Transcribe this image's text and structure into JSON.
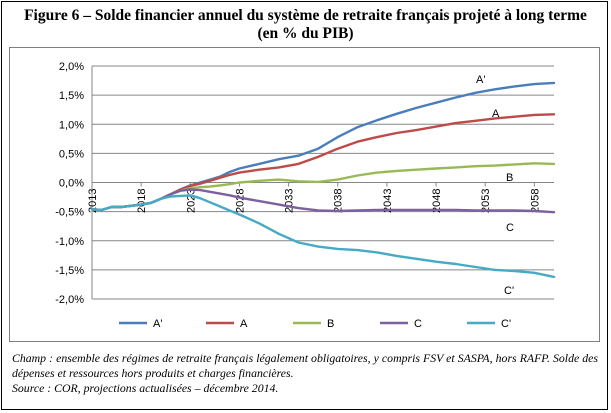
{
  "title_line1": "Figure 6 – Solde financier annuel du système de retraite français projeté à long terme",
  "title_line2": "(en % du PIB)",
  "notes": {
    "champ": "Champ : ensemble des régimes de retraite français légalement obligatoires, y compris FSV et SASPA, hors RAFP. Solde des dépenses et ressources hors produits et charges financières.",
    "source": "Source : COR, projections actualisées – décembre 2014."
  },
  "chart_data": {
    "type": "line",
    "title": "Solde financier annuel du système de retraite français projeté à long terme",
    "ylabel": "en % du PIB",
    "x_range": [
      2013,
      2060
    ],
    "x_ticks": [
      2013,
      2018,
      2023,
      2028,
      2033,
      2038,
      2043,
      2048,
      2053,
      2058
    ],
    "y_ticks": [
      "2,0%",
      "1,5%",
      "1,0%",
      "0,5%",
      "0,0%",
      "-0,5%",
      "-1,0%",
      "-1,5%",
      "-2,0%"
    ],
    "ylim": [
      -2.0,
      2.0
    ],
    "grid": "horizontal",
    "legend_position": "bottom",
    "series": [
      {
        "name": "A'",
        "color": "#4a7ebb",
        "x": [
          2013,
          2014,
          2015,
          2016,
          2017,
          2018,
          2019,
          2020,
          2021,
          2022,
          2023,
          2024,
          2025,
          2026,
          2027,
          2028,
          2030,
          2032,
          2034,
          2036,
          2038,
          2040,
          2042,
          2044,
          2046,
          2048,
          2050,
          2052,
          2054,
          2056,
          2058,
          2060
        ],
        "y": [
          -0.46,
          -0.47,
          -0.42,
          -0.42,
          -0.4,
          -0.38,
          -0.35,
          -0.28,
          -0.2,
          -0.12,
          -0.05,
          0.0,
          0.05,
          0.1,
          0.18,
          0.24,
          0.32,
          0.4,
          0.46,
          0.58,
          0.78,
          0.95,
          1.07,
          1.18,
          1.28,
          1.37,
          1.46,
          1.54,
          1.6,
          1.65,
          1.69,
          1.71
        ]
      },
      {
        "name": "A",
        "color": "#be4b48",
        "x": [
          2013,
          2014,
          2015,
          2016,
          2017,
          2018,
          2019,
          2020,
          2021,
          2022,
          2023,
          2024,
          2025,
          2026,
          2027,
          2028,
          2030,
          2032,
          2034,
          2036,
          2038,
          2040,
          2042,
          2044,
          2046,
          2048,
          2050,
          2052,
          2054,
          2056,
          2058,
          2060
        ],
        "y": [
          -0.46,
          -0.47,
          -0.42,
          -0.42,
          -0.4,
          -0.38,
          -0.35,
          -0.28,
          -0.2,
          -0.12,
          -0.06,
          -0.02,
          0.03,
          0.08,
          0.13,
          0.17,
          0.22,
          0.26,
          0.32,
          0.44,
          0.58,
          0.7,
          0.78,
          0.85,
          0.9,
          0.96,
          1.02,
          1.06,
          1.1,
          1.13,
          1.16,
          1.17
        ]
      },
      {
        "name": "B",
        "color": "#98b954",
        "x": [
          2013,
          2014,
          2015,
          2016,
          2017,
          2018,
          2019,
          2020,
          2021,
          2022,
          2023,
          2024,
          2025,
          2026,
          2027,
          2028,
          2030,
          2032,
          2034,
          2036,
          2038,
          2040,
          2042,
          2044,
          2046,
          2048,
          2050,
          2052,
          2054,
          2056,
          2058,
          2060
        ],
        "y": [
          -0.46,
          -0.47,
          -0.42,
          -0.42,
          -0.4,
          -0.38,
          -0.35,
          -0.28,
          -0.2,
          -0.14,
          -0.1,
          -0.08,
          -0.07,
          -0.05,
          -0.03,
          0.0,
          0.03,
          0.05,
          0.02,
          0.01,
          0.05,
          0.12,
          0.17,
          0.2,
          0.22,
          0.24,
          0.26,
          0.28,
          0.29,
          0.31,
          0.33,
          0.32
        ]
      },
      {
        "name": "C",
        "color": "#7d60a0",
        "x": [
          2013,
          2014,
          2015,
          2016,
          2017,
          2018,
          2019,
          2020,
          2021,
          2022,
          2023,
          2024,
          2025,
          2026,
          2027,
          2028,
          2030,
          2032,
          2034,
          2036,
          2038,
          2040,
          2042,
          2044,
          2046,
          2048,
          2050,
          2052,
          2054,
          2056,
          2058,
          2060
        ],
        "y": [
          -0.46,
          -0.47,
          -0.42,
          -0.42,
          -0.4,
          -0.38,
          -0.35,
          -0.28,
          -0.2,
          -0.14,
          -0.12,
          -0.13,
          -0.16,
          -0.19,
          -0.22,
          -0.26,
          -0.32,
          -0.38,
          -0.44,
          -0.48,
          -0.49,
          -0.48,
          -0.47,
          -0.47,
          -0.47,
          -0.47,
          -0.47,
          -0.48,
          -0.48,
          -0.48,
          -0.49,
          -0.51
        ]
      },
      {
        "name": "C'",
        "color": "#46aac5",
        "x": [
          2013,
          2014,
          2015,
          2016,
          2017,
          2018,
          2019,
          2020,
          2021,
          2022,
          2023,
          2024,
          2025,
          2026,
          2027,
          2028,
          2030,
          2032,
          2034,
          2036,
          2038,
          2040,
          2042,
          2044,
          2046,
          2048,
          2050,
          2052,
          2054,
          2056,
          2058,
          2060
        ],
        "y": [
          -0.46,
          -0.47,
          -0.42,
          -0.42,
          -0.4,
          -0.38,
          -0.35,
          -0.28,
          -0.24,
          -0.23,
          -0.22,
          -0.27,
          -0.34,
          -0.41,
          -0.48,
          -0.55,
          -0.7,
          -0.88,
          -1.03,
          -1.1,
          -1.14,
          -1.16,
          -1.2,
          -1.26,
          -1.31,
          -1.36,
          -1.4,
          -1.45,
          -1.5,
          -1.52,
          -1.55,
          -1.62
        ]
      }
    ]
  }
}
